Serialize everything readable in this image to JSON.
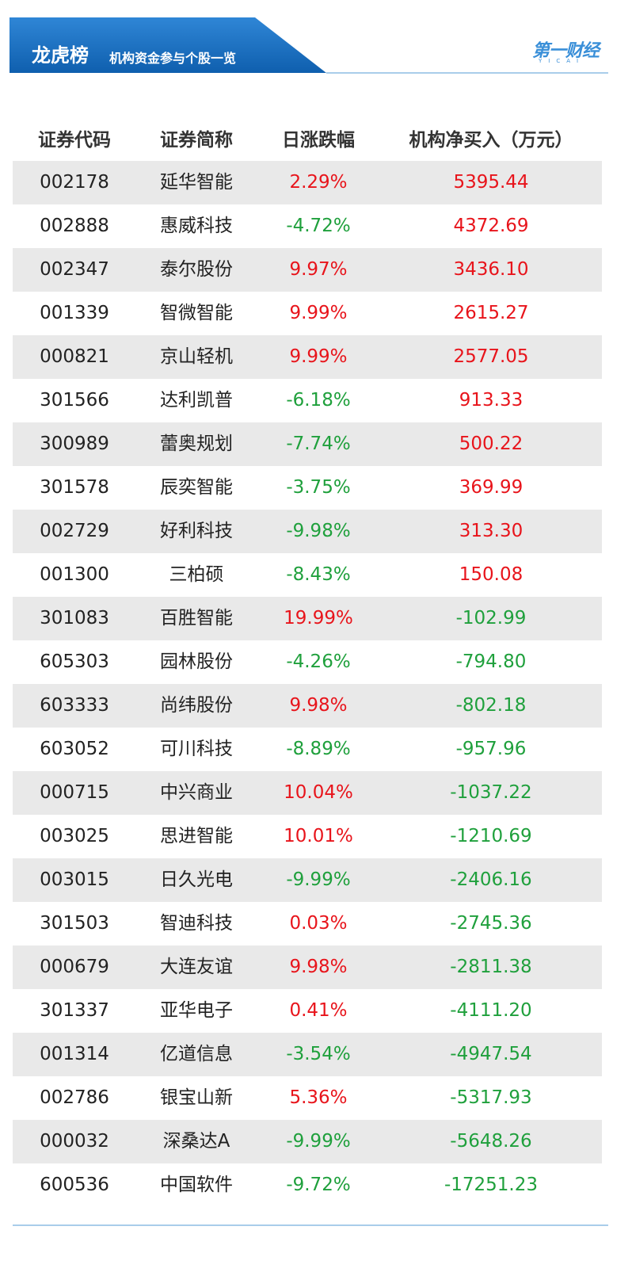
{
  "header": {
    "title": "龙虎榜",
    "subtitle": "机构资金参与个股一览",
    "logo": "第一财经",
    "logo_sub": "YICAI"
  },
  "table": {
    "columns": [
      "证券代码",
      "证券简称",
      "日涨跌幅",
      "机构净买入（万元）"
    ],
    "rows": [
      [
        "002178",
        "延华智能",
        "2.29%",
        "5395.44"
      ],
      [
        "002888",
        "惠威科技",
        "-4.72%",
        "4372.69"
      ],
      [
        "002347",
        "泰尔股份",
        "9.97%",
        "3436.10"
      ],
      [
        "001339",
        "智微智能",
        "9.99%",
        "2615.27"
      ],
      [
        "000821",
        "京山轻机",
        "9.99%",
        "2577.05"
      ],
      [
        "301566",
        "达利凯普",
        "-6.18%",
        "913.33"
      ],
      [
        "300989",
        "蕾奥规划",
        "-7.74%",
        "500.22"
      ],
      [
        "301578",
        "辰奕智能",
        "-3.75%",
        "369.99"
      ],
      [
        "002729",
        "好利科技",
        "-9.98%",
        "313.30"
      ],
      [
        "001300",
        "三柏硕",
        "-8.43%",
        "150.08"
      ],
      [
        "301083",
        "百胜智能",
        "19.99%",
        "-102.99"
      ],
      [
        "605303",
        "园林股份",
        "-4.26%",
        "-794.80"
      ],
      [
        "603333",
        "尚纬股份",
        "9.98%",
        "-802.18"
      ],
      [
        "603052",
        "可川科技",
        "-8.89%",
        "-957.96"
      ],
      [
        "000715",
        "中兴商业",
        "10.04%",
        "-1037.22"
      ],
      [
        "003025",
        "思进智能",
        "10.01%",
        "-1210.69"
      ],
      [
        "003015",
        "日久光电",
        "-9.99%",
        "-2406.16"
      ],
      [
        "301503",
        "智迪科技",
        "0.03%",
        "-2745.36"
      ],
      [
        "000679",
        "大连友谊",
        "9.98%",
        "-2811.38"
      ],
      [
        "301337",
        "亚华电子",
        "0.41%",
        "-4111.20"
      ],
      [
        "001314",
        "亿道信息",
        "-3.54%",
        "-4947.54"
      ],
      [
        "002786",
        "银宝山新",
        "5.36%",
        "-5317.93"
      ],
      [
        "000032",
        "深桑达A",
        "-9.99%",
        "-5648.26"
      ],
      [
        "600536",
        "中国软件",
        "-9.72%",
        "-17251.23"
      ]
    ]
  }
}
